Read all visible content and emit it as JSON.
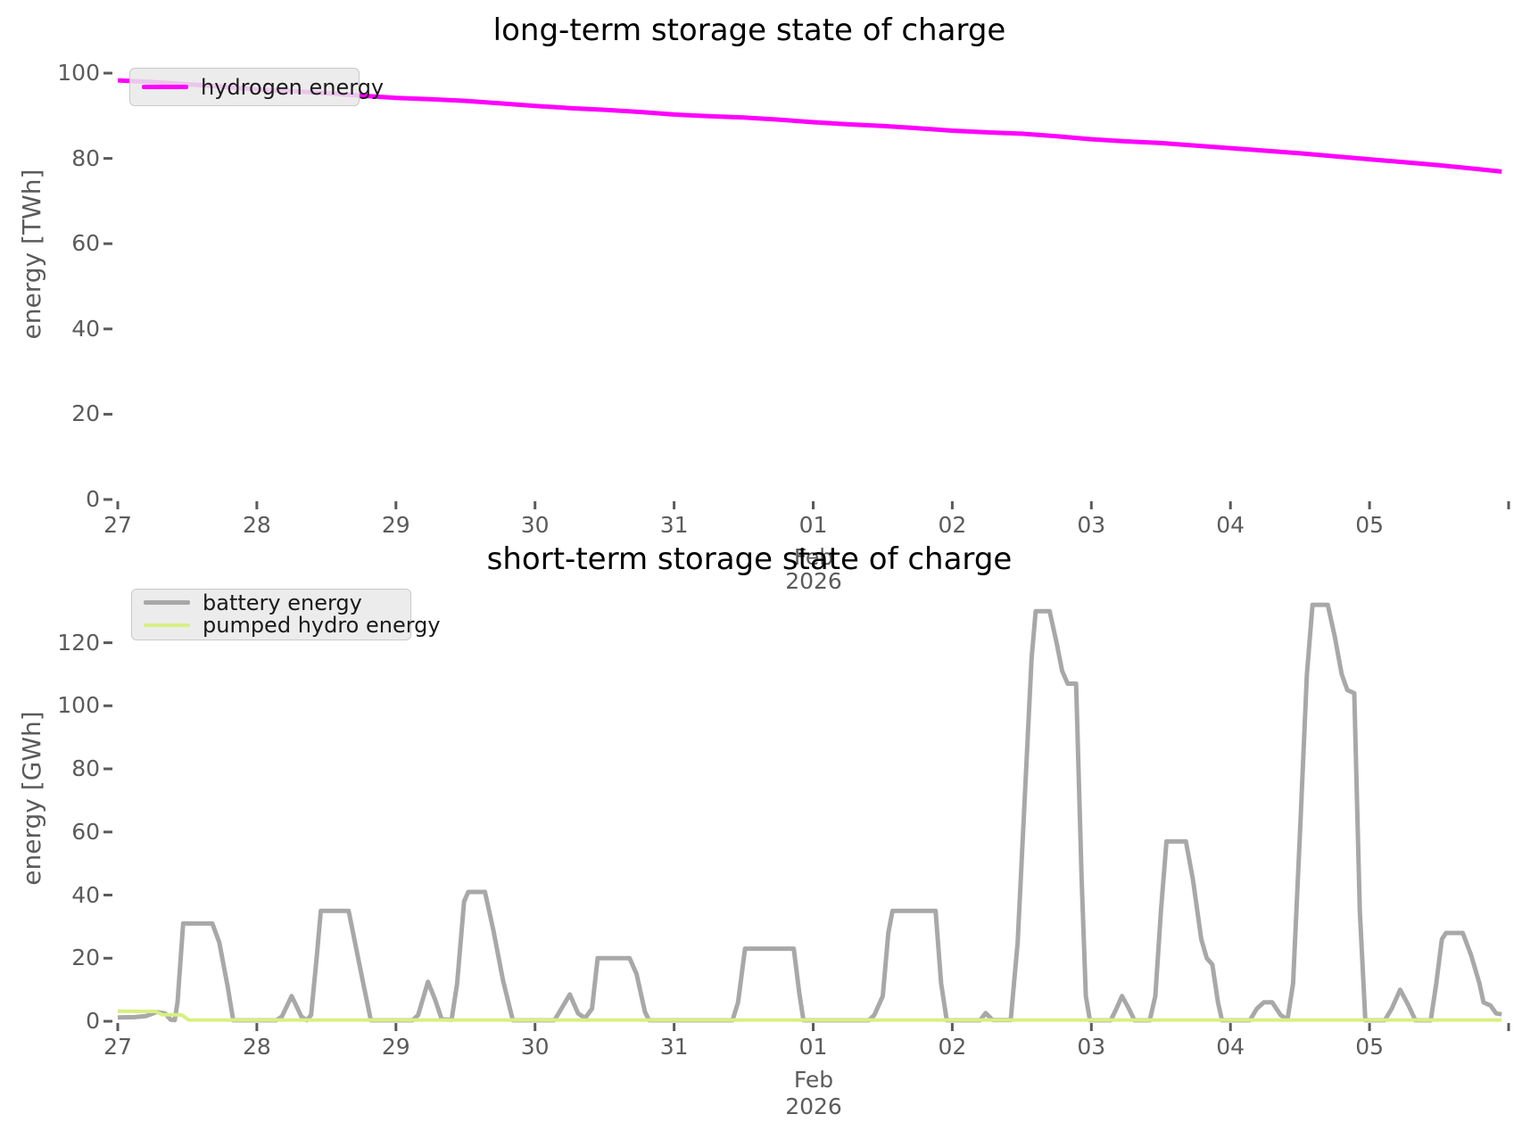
{
  "chart_data": [
    {
      "type": "line",
      "title": "long-term storage state of charge",
      "ylabel": "energy [TWh]",
      "xlabel": "",
      "month_label": "Feb",
      "year_label": "2026",
      "ylim": [
        0,
        104.6
      ],
      "xlim": [
        26.97,
        37.03
      ],
      "grid": false,
      "legend_position": "upper left",
      "y_ticks": [
        0,
        20,
        40,
        60,
        80,
        100
      ],
      "x_ticks": [
        {
          "d": 27,
          "label": "27"
        },
        {
          "d": 28,
          "label": "28"
        },
        {
          "d": 29,
          "label": "29"
        },
        {
          "d": 30,
          "label": "30"
        },
        {
          "d": 31,
          "label": "31"
        },
        {
          "d": 32,
          "label": "01"
        },
        {
          "d": 33,
          "label": "02"
        },
        {
          "d": 34,
          "label": "03"
        },
        {
          "d": 35,
          "label": "04"
        },
        {
          "d": 36,
          "label": "05"
        },
        {
          "d": 37,
          "label": ""
        }
      ],
      "series": [
        {
          "name": "hydrogen energy",
          "color": "#FF00FF",
          "line_width": 5,
          "points": [
            [
              27.0,
              98.3
            ],
            [
              27.25,
              97.9
            ],
            [
              27.5,
              97.4
            ],
            [
              27.75,
              96.8
            ],
            [
              28.0,
              96.2
            ],
            [
              28.25,
              95.8
            ],
            [
              28.5,
              95.3
            ],
            [
              28.75,
              94.7
            ],
            [
              29.0,
              94.2
            ],
            [
              29.25,
              93.9
            ],
            [
              29.5,
              93.5
            ],
            [
              29.75,
              92.9
            ],
            [
              30.0,
              92.3
            ],
            [
              30.25,
              91.8
            ],
            [
              30.5,
              91.4
            ],
            [
              30.75,
              90.9
            ],
            [
              31.0,
              90.3
            ],
            [
              31.25,
              89.9
            ],
            [
              31.5,
              89.6
            ],
            [
              31.75,
              89.1
            ],
            [
              32.0,
              88.5
            ],
            [
              32.25,
              88.0
            ],
            [
              32.5,
              87.6
            ],
            [
              32.75,
              87.1
            ],
            [
              33.0,
              86.5
            ],
            [
              33.25,
              86.1
            ],
            [
              33.5,
              85.8
            ],
            [
              33.75,
              85.2
            ],
            [
              34.0,
              84.5
            ],
            [
              34.25,
              84.0
            ],
            [
              34.5,
              83.6
            ],
            [
              34.75,
              83.0
            ],
            [
              35.0,
              82.4
            ],
            [
              35.25,
              81.8
            ],
            [
              35.5,
              81.2
            ],
            [
              35.75,
              80.5
            ],
            [
              36.0,
              79.8
            ],
            [
              36.25,
              79.1
            ],
            [
              36.5,
              78.4
            ],
            [
              36.75,
              77.6
            ],
            [
              36.95,
              76.9
            ]
          ]
        }
      ]
    },
    {
      "type": "line",
      "title": "short-term storage state of charge",
      "ylabel": "energy [GWh]",
      "xlabel": "",
      "month_label": "Feb",
      "year_label": "2026",
      "ylim": [
        0,
        139
      ],
      "xlim": [
        26.97,
        37.03
      ],
      "grid": false,
      "legend_position": "upper left",
      "y_ticks": [
        0,
        20,
        40,
        60,
        80,
        100,
        120
      ],
      "x_ticks": [
        {
          "d": 27,
          "label": "27"
        },
        {
          "d": 28,
          "label": "28"
        },
        {
          "d": 29,
          "label": "29"
        },
        {
          "d": 30,
          "label": "30"
        },
        {
          "d": 31,
          "label": "31"
        },
        {
          "d": 32,
          "label": "01"
        },
        {
          "d": 33,
          "label": "02"
        },
        {
          "d": 34,
          "label": "03"
        },
        {
          "d": 35,
          "label": "04"
        },
        {
          "d": 36,
          "label": "05"
        },
        {
          "d": 37,
          "label": ""
        }
      ],
      "series": [
        {
          "name": "battery energy",
          "color": "#A8A8A8",
          "line_width": 5,
          "points": [
            [
              27.0,
              1.2
            ],
            [
              27.12,
              1.3
            ],
            [
              27.2,
              1.6
            ],
            [
              27.28,
              2.9
            ],
            [
              27.34,
              2.5
            ],
            [
              27.38,
              0.5
            ],
            [
              27.41,
              0.4
            ],
            [
              27.43,
              6
            ],
            [
              27.47,
              31
            ],
            [
              27.68,
              31
            ],
            [
              27.73,
              25
            ],
            [
              27.79,
              11
            ],
            [
              27.83,
              0.3
            ],
            [
              28.14,
              0.3
            ],
            [
              28.18,
              1.5
            ],
            [
              28.25,
              8
            ],
            [
              28.32,
              1.5
            ],
            [
              28.36,
              0.3
            ],
            [
              28.39,
              2
            ],
            [
              28.43,
              20
            ],
            [
              28.46,
              35
            ],
            [
              28.66,
              35
            ],
            [
              28.71,
              24
            ],
            [
              28.77,
              11
            ],
            [
              28.82,
              0.3
            ],
            [
              29.12,
              0.3
            ],
            [
              29.16,
              2
            ],
            [
              29.23,
              12.5
            ],
            [
              29.28,
              7
            ],
            [
              29.33,
              0.6
            ],
            [
              29.4,
              0.5
            ],
            [
              29.44,
              12
            ],
            [
              29.49,
              38
            ],
            [
              29.52,
              41
            ],
            [
              29.64,
              41
            ],
            [
              29.7,
              29
            ],
            [
              29.77,
              13
            ],
            [
              29.84,
              0.3
            ],
            [
              30.14,
              0.3
            ],
            [
              30.19,
              4
            ],
            [
              30.25,
              8.5
            ],
            [
              30.31,
              2.5
            ],
            [
              30.36,
              1
            ],
            [
              30.41,
              4
            ],
            [
              30.45,
              20
            ],
            [
              30.68,
              20
            ],
            [
              30.73,
              15
            ],
            [
              30.79,
              3
            ],
            [
              30.82,
              0.3
            ],
            [
              31.42,
              0.3
            ],
            [
              31.46,
              6
            ],
            [
              31.51,
              23
            ],
            [
              31.86,
              23
            ],
            [
              31.9,
              9
            ],
            [
              31.93,
              0.3
            ],
            [
              32.4,
              0.3
            ],
            [
              32.44,
              2
            ],
            [
              32.5,
              8
            ],
            [
              32.54,
              28
            ],
            [
              32.57,
              35
            ],
            [
              32.88,
              35
            ],
            [
              32.92,
              12
            ],
            [
              32.96,
              0.3
            ],
            [
              33.2,
              0.3
            ],
            [
              33.24,
              2.6
            ],
            [
              33.29,
              0.4
            ],
            [
              33.42,
              0.4
            ],
            [
              33.47,
              25
            ],
            [
              33.52,
              70
            ],
            [
              33.57,
              115
            ],
            [
              33.6,
              130
            ],
            [
              33.7,
              130
            ],
            [
              33.75,
              120
            ],
            [
              33.79,
              111
            ],
            [
              33.83,
              107
            ],
            [
              33.89,
              107
            ],
            [
              33.93,
              45
            ],
            [
              33.96,
              8
            ],
            [
              33.99,
              0.3
            ],
            [
              34.14,
              0.3
            ],
            [
              34.18,
              4
            ],
            [
              34.22,
              8
            ],
            [
              34.27,
              4
            ],
            [
              34.31,
              0.3
            ],
            [
              34.42,
              0.3
            ],
            [
              34.46,
              8
            ],
            [
              34.5,
              35
            ],
            [
              34.54,
              57
            ],
            [
              34.68,
              57
            ],
            [
              34.73,
              45
            ],
            [
              34.79,
              26
            ],
            [
              34.83,
              20
            ],
            [
              34.87,
              18
            ],
            [
              34.91,
              6
            ],
            [
              34.94,
              0.3
            ],
            [
              35.14,
              0.3
            ],
            [
              35.19,
              4
            ],
            [
              35.24,
              6
            ],
            [
              35.3,
              6
            ],
            [
              35.36,
              2
            ],
            [
              35.41,
              0.5
            ],
            [
              35.45,
              12
            ],
            [
              35.5,
              60
            ],
            [
              35.55,
              110
            ],
            [
              35.59,
              132
            ],
            [
              35.7,
              132
            ],
            [
              35.75,
              122
            ],
            [
              35.8,
              110
            ],
            [
              35.84,
              105
            ],
            [
              35.89,
              104
            ],
            [
              35.93,
              35
            ],
            [
              35.97,
              0.3
            ],
            [
              36.11,
              0.3
            ],
            [
              36.16,
              4
            ],
            [
              36.22,
              10
            ],
            [
              36.28,
              5
            ],
            [
              36.33,
              0.3
            ],
            [
              36.44,
              0.3
            ],
            [
              36.48,
              12
            ],
            [
              36.52,
              26
            ],
            [
              36.55,
              28
            ],
            [
              36.67,
              28
            ],
            [
              36.73,
              21
            ],
            [
              36.79,
              12
            ],
            [
              36.82,
              6
            ],
            [
              36.87,
              5
            ],
            [
              36.91,
              2.5
            ],
            [
              36.95,
              2.2
            ]
          ]
        },
        {
          "name": "pumped hydro energy",
          "color": "#D6F082",
          "line_width": 4,
          "points": [
            [
              27.0,
              3.2
            ],
            [
              27.27,
              3.1
            ],
            [
              27.32,
              2.1
            ],
            [
              27.46,
              2.0
            ],
            [
              27.51,
              0.4
            ],
            [
              28.0,
              0.4
            ],
            [
              30.0,
              0.4
            ],
            [
              33.0,
              0.4
            ],
            [
              36.0,
              0.4
            ],
            [
              36.95,
              0.4
            ]
          ]
        }
      ]
    }
  ]
}
